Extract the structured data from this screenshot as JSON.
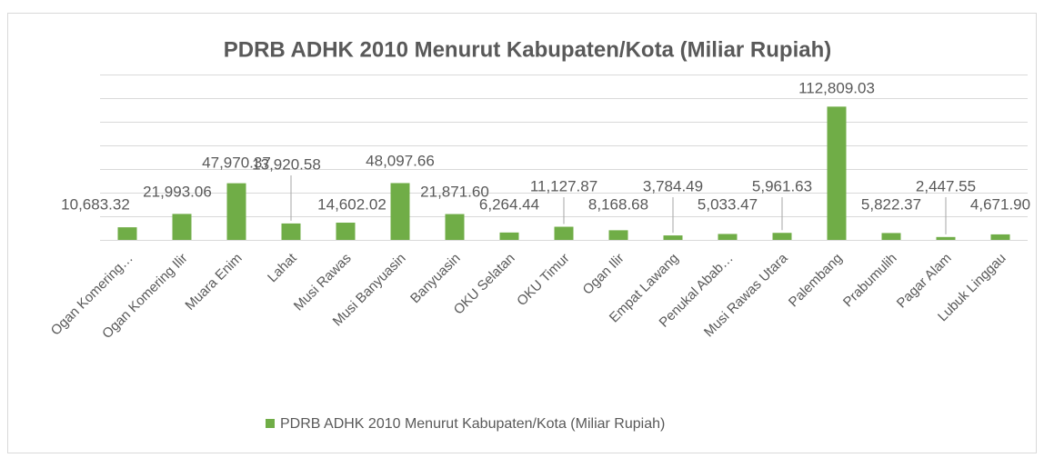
{
  "chart_data": {
    "type": "bar",
    "title": "PDRB ADHK 2010 Menurut Kabupaten/Kota (Miliar Rupiah)",
    "categories": [
      "Ogan Komering…",
      "Ogan Komering Ilir",
      "Muara Enim",
      "Lahat",
      "Musi Rawas",
      "Musi Banyuasin",
      "Banyuasin",
      "OKU Selatan",
      "OKU Timur",
      "Ogan Ilir",
      "Empat Lawang",
      "Penukal Abab…",
      "Musi Rawas Utara",
      "Palembang",
      "Prabumulih",
      "Pagar Alam",
      "Lubuk Linggau"
    ],
    "series": [
      {
        "name": "PDRB ADHK 2010 Menurut Kabupaten/Kota (Miliar Rupiah)",
        "color": "#70ad47",
        "values": [
          10683.32,
          21993.06,
          47970.37,
          13920.58,
          14602.02,
          48097.66,
          21871.6,
          6264.44,
          11127.87,
          8168.68,
          3784.49,
          5033.47,
          5961.63,
          112809.03,
          5822.37,
          2447.55,
          4671.9
        ],
        "value_labels": [
          "10,683.32",
          "21,993.06",
          "47,970.37",
          "13,920.58",
          "14,602.02",
          "48,097.66",
          "21,871.60",
          "6,264.44",
          "11,127.87",
          "8,168.68",
          "3,784.49",
          "5,033.47",
          "5,961.63",
          "112,809.03",
          "5,822.37",
          "2,447.55",
          "4,671.90"
        ]
      }
    ],
    "ylim": [
      0,
      140000
    ],
    "yticks": [
      0,
      20000,
      40000,
      60000,
      80000,
      100000,
      120000,
      140000
    ],
    "grid": true,
    "legend": "bottom"
  }
}
